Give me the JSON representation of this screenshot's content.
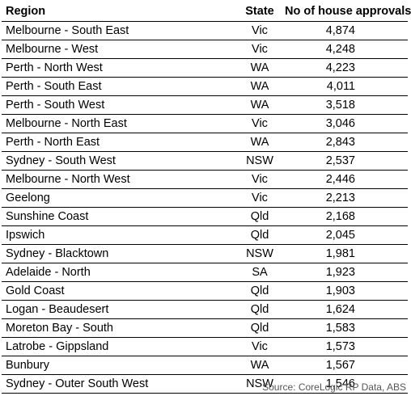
{
  "table": {
    "headers": {
      "region": "Region",
      "state": "State",
      "approvals": "No of house approvals"
    },
    "rows": [
      {
        "region": "Melbourne - South East",
        "state": "Vic",
        "approvals": "4,874"
      },
      {
        "region": "Melbourne - West",
        "state": "Vic",
        "approvals": "4,248"
      },
      {
        "region": "Perth - North West",
        "state": "WA",
        "approvals": "4,223"
      },
      {
        "region": "Perth - South East",
        "state": "WA",
        "approvals": "4,011"
      },
      {
        "region": "Perth - South West",
        "state": "WA",
        "approvals": "3,518"
      },
      {
        "region": "Melbourne - North East",
        "state": "Vic",
        "approvals": "3,046"
      },
      {
        "region": "Perth - North East",
        "state": "WA",
        "approvals": "2,843"
      },
      {
        "region": "Sydney - South West",
        "state": "NSW",
        "approvals": "2,537"
      },
      {
        "region": "Melbourne - North West",
        "state": "Vic",
        "approvals": "2,446"
      },
      {
        "region": "Geelong",
        "state": "Vic",
        "approvals": "2,213"
      },
      {
        "region": "Sunshine Coast",
        "state": "Qld",
        "approvals": "2,168"
      },
      {
        "region": "Ipswich",
        "state": "Qld",
        "approvals": "2,045"
      },
      {
        "region": "Sydney - Blacktown",
        "state": "NSW",
        "approvals": "1,981"
      },
      {
        "region": "Adelaide - North",
        "state": "SA",
        "approvals": "1,923"
      },
      {
        "region": "Gold Coast",
        "state": "Qld",
        "approvals": "1,903"
      },
      {
        "region": "Logan - Beaudesert",
        "state": "Qld",
        "approvals": "1,624"
      },
      {
        "region": "Moreton Bay - South",
        "state": "Qld",
        "approvals": "1,583"
      },
      {
        "region": "Latrobe - Gippsland",
        "state": "Vic",
        "approvals": "1,573"
      },
      {
        "region": "Bunbury",
        "state": "WA",
        "approvals": "1,567"
      },
      {
        "region": "Sydney - Outer South West",
        "state": "NSW",
        "approvals": "1,546"
      }
    ]
  },
  "source": "Source: CoreLogic RP Data, ABS"
}
